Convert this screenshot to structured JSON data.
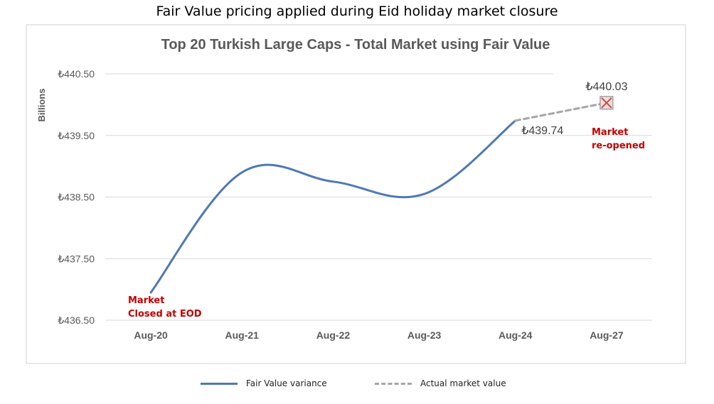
{
  "page": {
    "title": "Fair Value pricing applied during Eid holiday market closure"
  },
  "chart_data": {
    "type": "line",
    "title": "Top 20 Turkish Large Caps - Total Market using Fair Value",
    "xlabel": "",
    "ylabel": "Billions",
    "categories": [
      "Aug-20",
      "Aug-21",
      "Aug-22",
      "Aug-23",
      "Aug-24",
      "Aug-27"
    ],
    "ylim": [
      436.5,
      440.5
    ],
    "yticks": [
      436.5,
      437.5,
      438.5,
      439.5,
      440.5
    ],
    "ytick_labels": [
      "₺436.50",
      "₺437.50",
      "₺438.50",
      "₺439.50",
      "₺440.50"
    ],
    "grid": true,
    "legend_position": "bottom",
    "series": [
      {
        "name": "Fair Value variance",
        "color": "#4f79b2",
        "style": "solid",
        "values": [
          436.95,
          438.9,
          438.75,
          438.55,
          439.74,
          null
        ]
      },
      {
        "name": "Actual market value",
        "color": "#a6a6a6",
        "style": "dashed",
        "values": [
          null,
          null,
          null,
          null,
          439.74,
          440.03
        ]
      }
    ],
    "data_labels": [
      {
        "category": "Aug-24",
        "text": "₺439.74"
      },
      {
        "category": "Aug-27",
        "text": "₺440.03"
      }
    ],
    "annotations": [
      {
        "category": "Aug-20",
        "lines": [
          "Market",
          "Closed at EOD"
        ],
        "color": "#c00000"
      },
      {
        "category": "Aug-27",
        "lines": [
          "Market",
          "re-opened"
        ],
        "color": "#c00000"
      }
    ],
    "marker": {
      "category": "Aug-27",
      "icon": "x-box-marker",
      "color": "#c0504d"
    }
  }
}
